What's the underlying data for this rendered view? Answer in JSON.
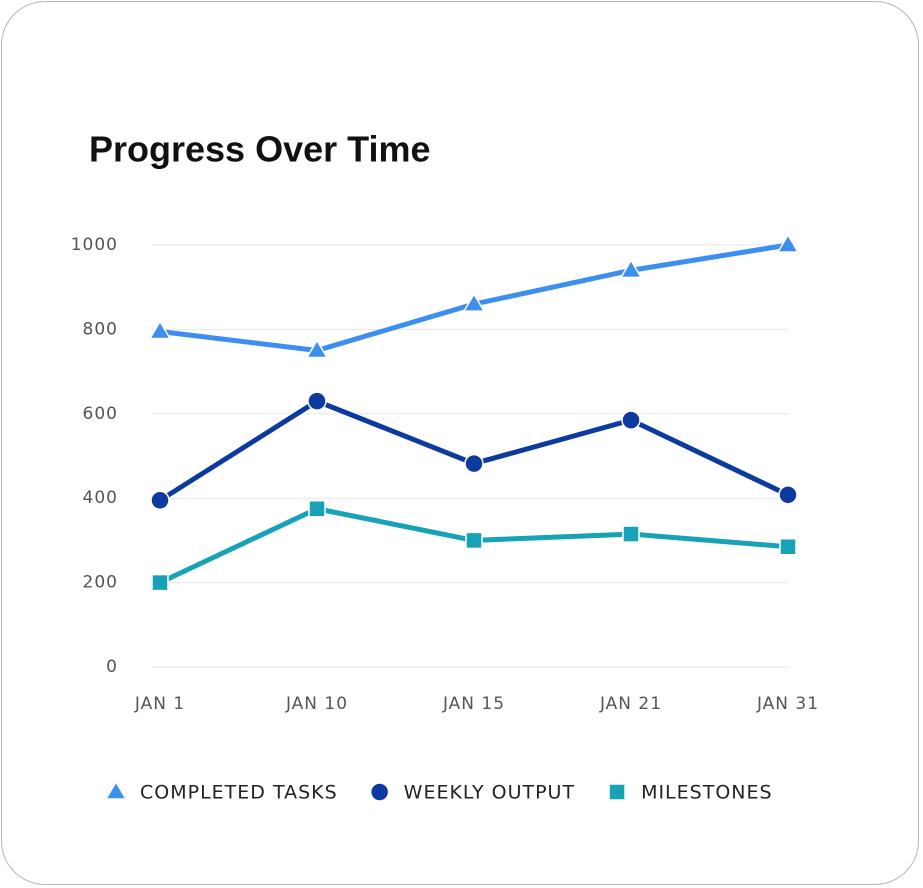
{
  "chart_data": {
    "type": "line",
    "title": "Progress Over Time",
    "categories": [
      "JAN 1",
      "JAN 10",
      "JAN 15",
      "JAN 21",
      "JAN 31"
    ],
    "series": [
      {
        "name": "COMPLETED TASKS",
        "color": "#3d8fef",
        "marker": "triangle",
        "values": [
          795,
          750,
          860,
          940,
          1000
        ]
      },
      {
        "name": "WEEKLY OUTPUT",
        "color": "#0d3a9e",
        "marker": "circle",
        "values": [
          395,
          630,
          482,
          585,
          408
        ]
      },
      {
        "name": "MILESTONES",
        "color": "#17a2b8",
        "marker": "square",
        "values": [
          200,
          375,
          300,
          315,
          285
        ]
      }
    ],
    "ylim": [
      0,
      1000
    ],
    "yticks": [
      0,
      200,
      400,
      600,
      800,
      1000
    ],
    "grid": true
  }
}
